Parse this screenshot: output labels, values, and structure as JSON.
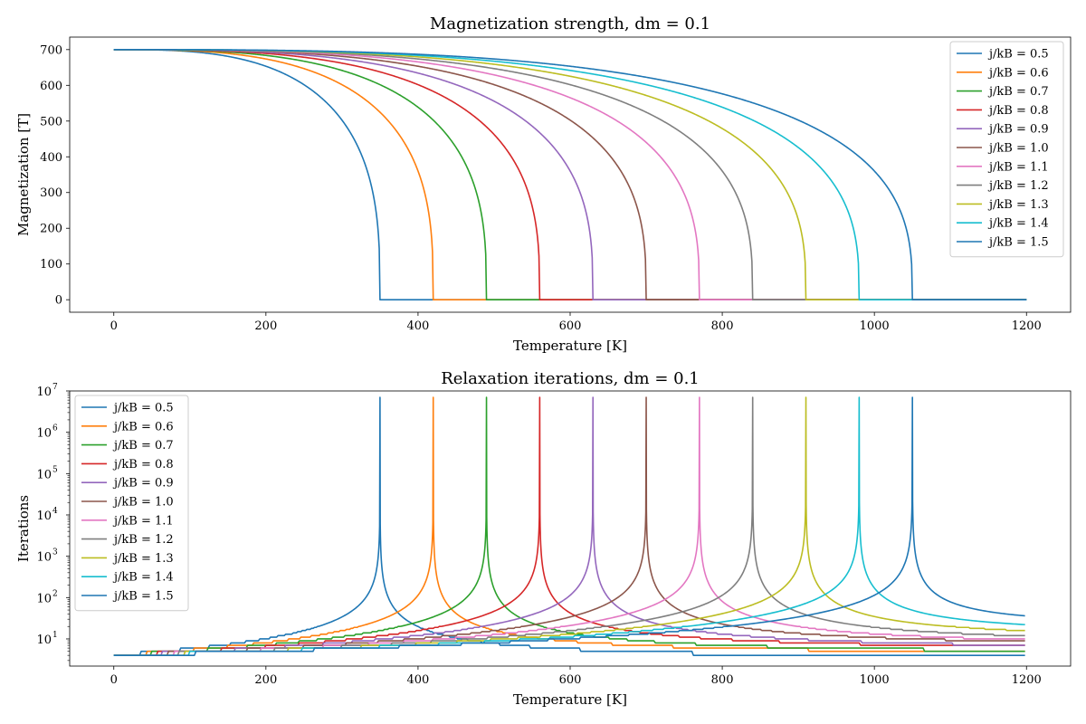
{
  "chart_data": [
    {
      "type": "line",
      "title": "Magnetization strength, dm = 0.1",
      "xlabel": "Temperature [K]",
      "ylabel": "Magnetization [T]",
      "xlim": [
        -58,
        1258
      ],
      "ylim": [
        -35,
        735
      ],
      "xticks": [
        "0",
        "200",
        "400",
        "600",
        "800",
        "1000",
        "1200"
      ],
      "yticks": [
        "0",
        "100",
        "200",
        "300",
        "400",
        "500",
        "600",
        "700"
      ],
      "legend": "upper-right",
      "series_model": {
        "M0": 700,
        "Tc_per_jkB": 700,
        "shape": "M = M0*(1-(T/Tc)^3)^(1/3) for T<Tc, 0 otherwise",
        "x_range": [
          0,
          1200
        ]
      },
      "series": [
        {
          "name": "j/kB = 0.5",
          "jkB": 0.5,
          "Tc": 350,
          "color": "#1f77b4"
        },
        {
          "name": "j/kB = 0.6",
          "jkB": 0.6,
          "Tc": 420,
          "color": "#ff7f0e"
        },
        {
          "name": "j/kB = 0.7",
          "jkB": 0.7,
          "Tc": 490,
          "color": "#2ca02c"
        },
        {
          "name": "j/kB = 0.8",
          "jkB": 0.8,
          "Tc": 560,
          "color": "#d62728"
        },
        {
          "name": "j/kB = 0.9",
          "jkB": 0.9,
          "Tc": 630,
          "color": "#9467bd"
        },
        {
          "name": "j/kB = 1.0",
          "jkB": 1.0,
          "Tc": 700,
          "color": "#8c564b"
        },
        {
          "name": "j/kB = 1.1",
          "jkB": 1.1,
          "Tc": 770,
          "color": "#e377c2"
        },
        {
          "name": "j/kB = 1.2",
          "jkB": 1.2,
          "Tc": 840,
          "color": "#7f7f7f"
        },
        {
          "name": "j/kB = 1.3",
          "jkB": 1.3,
          "Tc": 910,
          "color": "#bcbd22"
        },
        {
          "name": "j/kB = 1.4",
          "jkB": 1.4,
          "Tc": 980,
          "color": "#17becf"
        },
        {
          "name": "j/kB = 1.5",
          "jkB": 1.5,
          "Tc": 1050,
          "color": "#1f77b4"
        }
      ]
    },
    {
      "type": "line",
      "title": "Relaxation iterations, dm = 0.1",
      "xlabel": "Temperature [K]",
      "ylabel": "Iterations",
      "xlim": [
        -58,
        1258
      ],
      "ylim": [
        2.2,
        10000000
      ],
      "yscale": "log",
      "xticks": [
        "0",
        "200",
        "400",
        "600",
        "800",
        "1000",
        "1200"
      ],
      "yticks": [
        {
          "base": "10",
          "exp": "1",
          "value": 10
        },
        {
          "base": "10",
          "exp": "2",
          "value": 100
        },
        {
          "base": "10",
          "exp": "3",
          "value": 1000
        },
        {
          "base": "10",
          "exp": "4",
          "value": 10000
        },
        {
          "base": "10",
          "exp": "5",
          "value": 100000
        },
        {
          "base": "10",
          "exp": "6",
          "value": 1000000
        },
        {
          "base": "10",
          "exp": "7",
          "value": 10000000
        }
      ],
      "legend": "upper-left",
      "series_model": {
        "peak": 7000000,
        "start": 4,
        "below_Tc": "rises gradually toward a spike at Tc",
        "above_Tc": "decays, stepping down to a plateau",
        "x_range": [
          0,
          1200
        ]
      },
      "series": [
        {
          "name": "j/kB = 0.5",
          "Tc": 350,
          "end_value": 3,
          "color": "#1f77b4"
        },
        {
          "name": "j/kB = 0.6",
          "Tc": 420,
          "end_value": 4,
          "color": "#ff7f0e"
        },
        {
          "name": "j/kB = 0.7",
          "Tc": 490,
          "end_value": 4,
          "color": "#2ca02c"
        },
        {
          "name": "j/kB = 0.8",
          "Tc": 560,
          "end_value": 5,
          "color": "#d62728"
        },
        {
          "name": "j/kB = 0.9",
          "Tc": 630,
          "end_value": 5,
          "color": "#9467bd"
        },
        {
          "name": "j/kB = 1.0",
          "Tc": 700,
          "end_value": 6,
          "color": "#8c564b"
        },
        {
          "name": "j/kB = 1.1",
          "Tc": 770,
          "end_value": 6,
          "color": "#e377c2"
        },
        {
          "name": "j/kB = 1.2",
          "Tc": 840,
          "end_value": 7,
          "color": "#7f7f7f"
        },
        {
          "name": "j/kB = 1.3",
          "Tc": 910,
          "end_value": 9,
          "color": "#bcbd22"
        },
        {
          "name": "j/kB = 1.4",
          "Tc": 980,
          "end_value": 12,
          "color": "#17becf"
        },
        {
          "name": "j/kB = 1.5",
          "Tc": 1050,
          "end_value": 19,
          "color": "#1f77b4"
        }
      ]
    }
  ]
}
